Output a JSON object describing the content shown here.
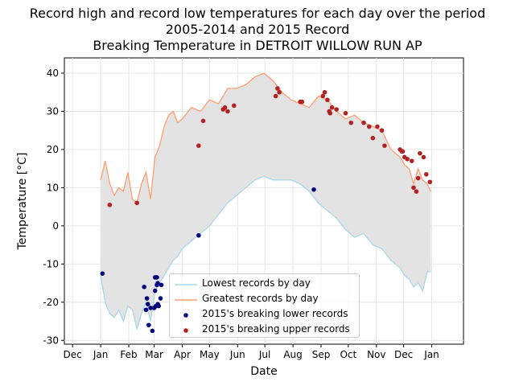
{
  "chart_data": {
    "type": "line",
    "title": [
      "Record high and record low temperatures for each day over the period",
      "2005-2014 and 2015 Record",
      "Breaking Temperature in DETROIT WILLOW RUN AP"
    ],
    "xlabel": "Date",
    "ylabel": "Temperature [°C]",
    "x_ticks": [
      "Dec",
      "Jan",
      "Feb",
      "Mar",
      "Apr",
      "May",
      "Jun",
      "Jul",
      "Aug",
      "Sep",
      "Oct",
      "Nov",
      "Dec",
      "Jan"
    ],
    "y_ticks": [
      -30,
      -20,
      -10,
      0,
      10,
      20,
      30,
      40
    ],
    "ylim": [
      -31,
      44
    ],
    "xlim_days": [
      -40,
      400
    ],
    "grid": true,
    "legend_placement": "lower-center",
    "colors": {
      "low_line": "#a8d8e8",
      "high_line": "#ff9e70",
      "fill": "#e3e3e3",
      "low_break": "#00007f",
      "high_break": "#b22222"
    },
    "series": [
      {
        "name": "Lowest records by day",
        "type": "line",
        "day": [
          0,
          5,
          10,
          15,
          20,
          25,
          30,
          35,
          40,
          45,
          50,
          55,
          60,
          65,
          70,
          75,
          80,
          85,
          90,
          100,
          110,
          120,
          130,
          140,
          150,
          160,
          170,
          180,
          190,
          200,
          210,
          220,
          230,
          240,
          250,
          260,
          270,
          280,
          290,
          300,
          310,
          320,
          330,
          335,
          340,
          345,
          350,
          355,
          360,
          364
        ],
        "value": [
          -13,
          -20,
          -23,
          -24,
          -22,
          -25,
          -21,
          -22,
          -27,
          -23,
          -20,
          -25,
          -17,
          -15,
          -13,
          -11,
          -9,
          -8,
          -6,
          -4,
          -2,
          0,
          3,
          6,
          8,
          10,
          12,
          13,
          12,
          12,
          12,
          11,
          9,
          6,
          4,
          2,
          -1,
          -3,
          -2,
          -5,
          -6,
          -9,
          -11,
          -13,
          -14,
          -16,
          -15,
          -17,
          -12,
          -12
        ]
      },
      {
        "name": "Greatest records by day",
        "type": "line",
        "day": [
          0,
          5,
          10,
          15,
          20,
          25,
          30,
          35,
          40,
          45,
          50,
          55,
          60,
          65,
          70,
          75,
          80,
          85,
          90,
          100,
          110,
          120,
          130,
          140,
          150,
          160,
          170,
          180,
          190,
          200,
          210,
          220,
          230,
          240,
          250,
          260,
          270,
          280,
          290,
          300,
          310,
          320,
          330,
          335,
          340,
          345,
          350,
          355,
          360,
          364
        ],
        "value": [
          12,
          17,
          11,
          8,
          10,
          9,
          14,
          7,
          6,
          11,
          14,
          7,
          18,
          21,
          26,
          29,
          30,
          27,
          28,
          31,
          30,
          33,
          32,
          36,
          36,
          37,
          39,
          40,
          38,
          35,
          33,
          32,
          31,
          34,
          33,
          30,
          28,
          29,
          27,
          26,
          25,
          20,
          18,
          16,
          15,
          11,
          15,
          12,
          11,
          9
        ]
      },
      {
        "name": "2015's breaking lower records",
        "type": "scatter",
        "day": [
          2,
          48,
          50,
          51,
          52,
          53,
          55,
          57,
          59,
          60,
          60,
          61,
          62,
          62,
          63,
          63,
          64,
          66,
          67,
          108,
          235
        ],
        "value": [
          -12.5,
          -16,
          -22,
          -19,
          -20.5,
          -26,
          -21.5,
          -27.5,
          -21.5,
          -17,
          -13.5,
          -21,
          -15.5,
          -13.5,
          -20.5,
          -15,
          -21,
          -19,
          -15.5,
          -2.5,
          9.5
        ]
      },
      {
        "name": "2015's breaking upper records",
        "type": "scatter",
        "day": [
          10,
          40,
          108,
          113,
          135,
          137,
          140,
          147,
          193,
          195,
          197,
          220,
          222,
          245,
          247,
          250,
          252,
          253,
          255,
          260,
          270,
          276,
          290,
          296,
          300,
          305,
          310,
          313,
          330,
          332,
          333,
          335,
          338,
          343,
          345,
          348,
          350,
          352,
          356,
          359,
          363
        ],
        "value": [
          5.5,
          6,
          21,
          27.5,
          30.5,
          31,
          30,
          31.5,
          34,
          36,
          35,
          32.5,
          32.5,
          34,
          35,
          33,
          30,
          29.5,
          31,
          30.5,
          29.5,
          27,
          27,
          26,
          23,
          26,
          25,
          21,
          20,
          19.5,
          19.5,
          18,
          17.5,
          17,
          10,
          9,
          12.5,
          19,
          18,
          13.5,
          11.5
        ]
      }
    ]
  }
}
